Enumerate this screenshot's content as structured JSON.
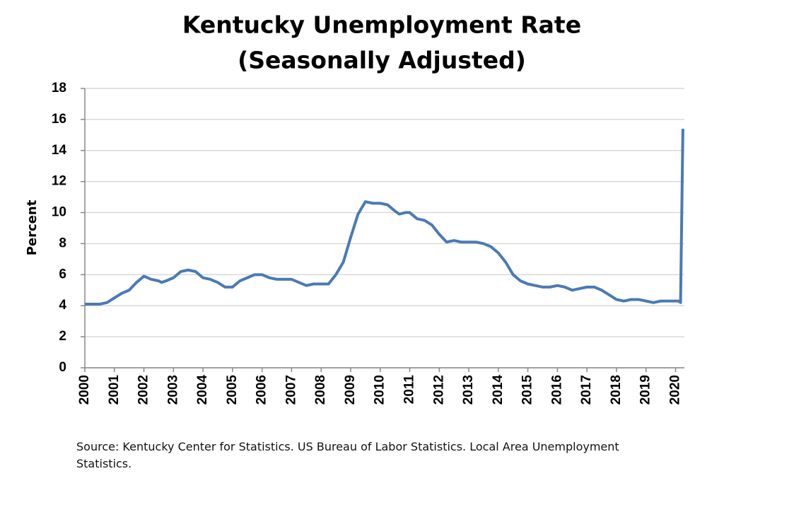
{
  "chart_data": {
    "type": "line",
    "title": "Kentucky Unemployment Rate",
    "subtitle": "(Seasonally Adjusted)",
    "y_label": "Percent",
    "source": "Source: Kentucky Center for Statistics. US Bureau of Labor Statistics. Local Area Unemployment Statistics.",
    "x": [
      2000,
      2000.25,
      2000.5,
      2000.75,
      2001,
      2001.25,
      2001.5,
      2001.75,
      2002,
      2002.25,
      2002.5,
      2002.6,
      2002.75,
      2003,
      2003.25,
      2003.5,
      2003.75,
      2004,
      2004.25,
      2004.5,
      2004.75,
      2005,
      2005.25,
      2005.5,
      2005.75,
      2006,
      2006.25,
      2006.5,
      2006.75,
      2007,
      2007.25,
      2007.5,
      2007.75,
      2008,
      2008.25,
      2008.5,
      2008.75,
      2009,
      2009.25,
      2009.5,
      2009.75,
      2010,
      2010.25,
      2010.5,
      2010.65,
      2010.85,
      2011,
      2011.25,
      2011.5,
      2011.75,
      2012,
      2012.25,
      2012.5,
      2012.75,
      2013,
      2013.25,
      2013.5,
      2013.75,
      2014,
      2014.25,
      2014.5,
      2014.75,
      2015,
      2015.25,
      2015.5,
      2015.75,
      2016,
      2016.25,
      2016.5,
      2016.75,
      2017,
      2017.25,
      2017.5,
      2017.75,
      2018,
      2018.25,
      2018.5,
      2018.75,
      2019,
      2019.25,
      2019.5,
      2019.75,
      2020,
      2020.1,
      2020.17,
      2020.25
    ],
    "values": [
      4.1,
      4.1,
      4.1,
      4.2,
      4.5,
      4.8,
      5.0,
      5.5,
      5.9,
      5.7,
      5.6,
      5.5,
      5.6,
      5.8,
      6.2,
      6.3,
      6.2,
      5.8,
      5.7,
      5.5,
      5.2,
      5.2,
      5.6,
      5.8,
      6.0,
      6.0,
      5.8,
      5.7,
      5.7,
      5.7,
      5.5,
      5.3,
      5.4,
      5.4,
      5.4,
      6.0,
      6.8,
      8.4,
      9.9,
      10.7,
      10.6,
      10.6,
      10.5,
      10.1,
      9.9,
      10.0,
      10.0,
      9.6,
      9.5,
      9.2,
      8.6,
      8.1,
      8.2,
      8.1,
      8.1,
      8.1,
      8.0,
      7.8,
      7.4,
      6.8,
      6.0,
      5.6,
      5.4,
      5.3,
      5.2,
      5.2,
      5.3,
      5.2,
      5.0,
      5.1,
      5.2,
      5.2,
      5.0,
      4.7,
      4.4,
      4.3,
      4.4,
      4.4,
      4.3,
      4.2,
      4.3,
      4.3,
      4.3,
      4.3,
      4.2,
      15.4
    ],
    "color": "#4a7ab5",
    "xlim": [
      2000,
      2020.3
    ],
    "xticks": [
      2000,
      2001,
      2002,
      2003,
      2004,
      2005,
      2006,
      2007,
      2008,
      2009,
      2010,
      2011,
      2012,
      2013,
      2014,
      2015,
      2016,
      2017,
      2018,
      2019,
      2020
    ],
    "ylim": [
      0,
      18
    ],
    "yticks": [
      0,
      2,
      4,
      6,
      8,
      10,
      12,
      14,
      16,
      18
    ],
    "grid": true
  }
}
